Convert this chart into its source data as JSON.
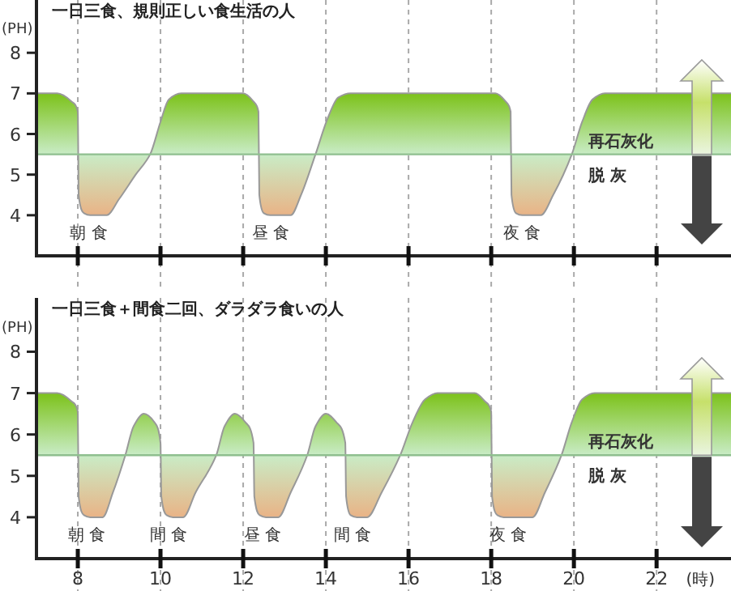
{
  "chart_data": [
    {
      "type": "area",
      "title": "一日三食、規則正しい食生活の人",
      "ylabel": "(PH)",
      "xlim": [
        7,
        23.8
      ],
      "ylim": [
        3,
        9.3
      ],
      "xticks": [
        8,
        10,
        12,
        14,
        16,
        18,
        20,
        22
      ],
      "yticks": [
        4,
        5,
        6,
        7,
        8
      ],
      "tick_labels": "y",
      "grid": "x",
      "series": [
        {
          "color": "#7cc21a",
          "x": [
            7,
            7.5,
            7.85,
            8.0,
            8.02,
            8.15,
            8.3,
            8.7,
            9.0,
            9.4,
            9.75,
            10.0,
            10.2,
            10.5,
            12.0,
            12.25,
            12.37,
            12.39,
            12.5,
            12.65,
            13.15,
            13.4,
            13.75,
            14.05,
            14.3,
            14.6,
            18.1,
            18.35,
            18.47,
            18.49,
            18.6,
            18.75,
            19.2,
            19.5,
            19.95,
            20.2,
            20.45,
            20.75,
            23.8
          ],
          "values": [
            7,
            7,
            6.8,
            6.55,
            4.5,
            4.05,
            4,
            4,
            4.4,
            5.0,
            5.5,
            6.3,
            6.85,
            7,
            7,
            6.8,
            6.55,
            4.5,
            4.05,
            4,
            4,
            4.5,
            5.5,
            6.4,
            6.9,
            7,
            7,
            6.8,
            6.55,
            4.5,
            4.05,
            4,
            4,
            4.5,
            5.5,
            6.3,
            6.85,
            7,
            7
          ]
        }
      ],
      "ref_lines": [
        {
          "axis": "y",
          "value": 5.5,
          "color": "#8fbf8f"
        }
      ],
      "annotations": [
        "朝 食",
        "昼 食",
        "夜 食",
        "再石灰化",
        "脱 灰"
      ]
    },
    {
      "type": "area",
      "title": "一日三食＋間食二回、ダラダラ食いの人",
      "ylabel": "(PH)",
      "xlabel": "(時)",
      "xlim": [
        7,
        23.8
      ],
      "ylim": [
        3,
        9.3
      ],
      "xticks": [
        8,
        10,
        12,
        14,
        16,
        18,
        20,
        22
      ],
      "yticks": [
        4,
        5,
        6,
        7,
        8
      ],
      "grid": "x",
      "series": [
        {
          "color": "#7cc21a",
          "x": [
            7,
            7.5,
            7.85,
            8.0,
            8.02,
            8.15,
            8.3,
            8.6,
            8.85,
            9.15,
            9.35,
            9.6,
            9.85,
            10.0,
            10.02,
            10.15,
            10.3,
            10.55,
            10.85,
            11.35,
            11.55,
            11.8,
            12.05,
            12.25,
            12.27,
            12.4,
            12.55,
            12.85,
            13.15,
            13.55,
            13.75,
            14.0,
            14.25,
            14.47,
            14.49,
            14.6,
            14.75,
            15.0,
            15.35,
            15.8,
            16.1,
            16.4,
            16.7,
            17.6,
            17.85,
            18.0,
            18.02,
            18.15,
            18.3,
            19.0,
            19.3,
            19.7,
            19.95,
            20.2,
            20.5,
            23.8
          ],
          "values": [
            7,
            7,
            6.8,
            6.55,
            4.5,
            4.05,
            4,
            4,
            4.6,
            5.5,
            6.2,
            6.5,
            6.3,
            5.8,
            4.5,
            4.05,
            4,
            4,
            4.6,
            5.5,
            6.2,
            6.5,
            6.3,
            5.8,
            4.5,
            4.05,
            4,
            4,
            4.6,
            5.5,
            6.2,
            6.5,
            6.3,
            5.8,
            4.5,
            4.05,
            4,
            4,
            4.6,
            5.5,
            6.3,
            6.85,
            7,
            7,
            6.8,
            6.55,
            4.5,
            4.05,
            4,
            4,
            4.6,
            5.5,
            6.3,
            6.85,
            7,
            7
          ]
        }
      ],
      "ref_lines": [
        {
          "axis": "y",
          "value": 5.5,
          "color": "#8fbf8f"
        }
      ],
      "annotations": [
        "朝 食",
        "間 食",
        "昼 食",
        "間 食",
        "夜 食",
        "再石灰化",
        "脱 灰"
      ]
    }
  ]
}
